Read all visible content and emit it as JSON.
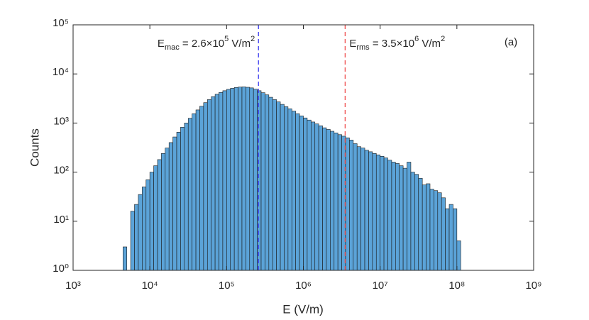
{
  "chart_data": {
    "type": "histogram",
    "xlabel": "E (V/m)",
    "ylabel": "Counts",
    "panel_label": "(a)",
    "log_x": true,
    "log_y": true,
    "color": "#5ba3d8",
    "edge_color": "#1a1a1a",
    "xlim": [
      1000,
      1000000000
    ],
    "ylim": [
      1,
      100000
    ],
    "xticks": [
      {
        "value": 1000,
        "label": "10³"
      },
      {
        "value": 10000,
        "label": "10⁴"
      },
      {
        "value": 100000,
        "label": "10⁵"
      },
      {
        "value": 1000000,
        "label": "10⁶"
      },
      {
        "value": 10000000,
        "label": "10⁷"
      },
      {
        "value": 100000000,
        "label": "10⁸"
      },
      {
        "value": 1000000000,
        "label": "10⁹"
      }
    ],
    "yticks": [
      {
        "value": 1,
        "label": "10⁰"
      },
      {
        "value": 10,
        "label": "10¹"
      },
      {
        "value": 100,
        "label": "10²"
      },
      {
        "value": 1000,
        "label": "10³"
      },
      {
        "value": 10000,
        "label": "10⁴"
      },
      {
        "value": 100000,
        "label": "10⁵"
      }
    ],
    "bins": [
      1995,
      2239,
      2512,
      2818,
      3162,
      3548,
      3981,
      4467,
      5012,
      5623,
      6310,
      7079,
      7943,
      8913,
      10000,
      11220,
      12590,
      14130,
      15850,
      17780,
      19950,
      22390,
      25120,
      28180,
      31620,
      35480,
      39810,
      44670,
      50120,
      56230,
      63100,
      70790,
      79430,
      89130,
      100000,
      112200,
      125900,
      141300,
      158500,
      177800,
      199500,
      223900,
      251200,
      281800,
      316200,
      354800,
      398100,
      446700,
      501200,
      562300,
      631000,
      707900,
      794300,
      891300,
      1000000,
      1122000,
      1259000,
      1413000,
      1585000,
      1778000,
      1995000,
      2239000,
      2512000,
      2818000,
      3162000,
      3548000,
      3981000,
      4467000,
      5012000,
      5623000,
      6310000,
      7079000,
      7943000,
      8913000,
      10000000,
      11220000,
      12590000,
      14130000,
      15850000,
      17780000,
      19950000,
      22390000,
      25120000,
      28180000,
      31620000,
      35480000,
      39810000,
      44670000,
      50120000,
      56230000,
      63100000,
      70790000,
      79430000,
      89130000,
      100000000,
      112200000,
      125900000
    ],
    "values": [
      0,
      0,
      0,
      0,
      0,
      0,
      0,
      3,
      0,
      16,
      22,
      35,
      50,
      70,
      100,
      135,
      180,
      240,
      310,
      400,
      520,
      650,
      820,
      1000,
      1250,
      1550,
      1850,
      2200,
      2600,
      3000,
      3450,
      3850,
      4200,
      4550,
      4850,
      5100,
      5300,
      5400,
      5450,
      5350,
      5200,
      4900,
      4550,
      4150,
      3750,
      3350,
      3000,
      2700,
      2400,
      2150,
      1950,
      1750,
      1550,
      1400,
      1270,
      1150,
      1050,
      960,
      880,
      800,
      740,
      680,
      630,
      580,
      540,
      500,
      450,
      380,
      330,
      310,
      280,
      260,
      240,
      225,
      210,
      195,
      175,
      160,
      150,
      135,
      120,
      160,
      100,
      90,
      75,
      55,
      58,
      45,
      42,
      38,
      30,
      18,
      22,
      18,
      4,
      0
    ],
    "annotations": [
      {
        "x": 260000,
        "color": "#3b3bf0",
        "side": "left",
        "parts": [
          {
            "text": "E"
          },
          {
            "text": "mac",
            "shift": "sub"
          },
          {
            "text": " = 2.6×10"
          },
          {
            "text": "5",
            "shift": "super"
          },
          {
            "text": " V/m"
          },
          {
            "text": "2",
            "shift": "super"
          }
        ]
      },
      {
        "x": 3500000,
        "color": "#f05050",
        "side": "right",
        "parts": [
          {
            "text": "E"
          },
          {
            "text": "rms",
            "shift": "sub"
          },
          {
            "text": " = 3.5×10"
          },
          {
            "text": "6",
            "shift": "super"
          },
          {
            "text": " V/m"
          },
          {
            "text": "2",
            "shift": "super"
          }
        ]
      }
    ]
  }
}
